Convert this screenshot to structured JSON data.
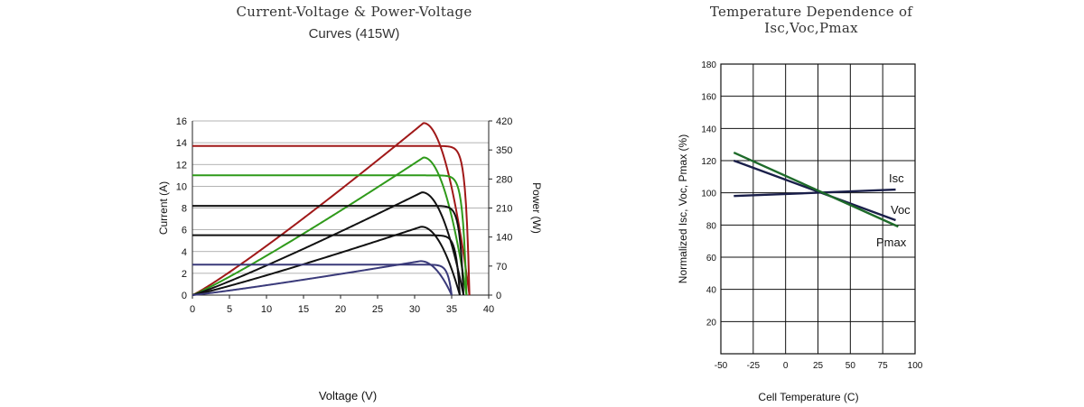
{
  "chart_data": [
    {
      "type": "line",
      "title": "Current-Voltage & Power-Voltage",
      "subtitle": "Curves (415W)",
      "xlabel": "Voltage (V)",
      "ylabel": "Current (A)",
      "y2label": "Power (W)",
      "xlim": [
        0,
        40
      ],
      "ylim": [
        0,
        16
      ],
      "y2lim": [
        0,
        420
      ],
      "x_ticks": [
        "0",
        "5",
        "10",
        "15",
        "20",
        "25",
        "30",
        "35",
        "40"
      ],
      "y_ticks": [
        "0",
        "2",
        "4",
        "6",
        "8",
        "10",
        "12",
        "14",
        "16"
      ],
      "y2_ticks": [
        "0",
        "70",
        "140",
        "210",
        "280",
        "350",
        "420"
      ],
      "grid": "horizontal",
      "series": [
        {
          "color": "#a01818",
          "isc": 13.7,
          "voc": 37.4,
          "vmp": 31.2,
          "pmax": 415
        },
        {
          "color": "#2f9a1a",
          "isc": 11.0,
          "voc": 37.0,
          "vmp": 31.2,
          "pmax": 332
        },
        {
          "color": "#111111",
          "isc": 8.2,
          "voc": 36.6,
          "vmp": 31.0,
          "pmax": 248
        },
        {
          "color": "#111111",
          "isc": 5.5,
          "voc": 36.1,
          "vmp": 30.9,
          "pmax": 165
        },
        {
          "color": "#3a3a7a",
          "isc": 2.8,
          "voc": 35.0,
          "vmp": 30.8,
          "pmax": 82
        }
      ]
    },
    {
      "type": "line",
      "title": "Temperature Dependence of",
      "title2": "Isc,Voc,Pmax",
      "xlabel": "Cell Temperature (C)",
      "ylabel": "Normalized Isc, Voc, Pmax (%)",
      "xlim": [
        -50,
        100
      ],
      "ylim": [
        0,
        180
      ],
      "x_ticks": [
        "-50",
        "-25",
        "0",
        "25",
        "50",
        "75",
        "100"
      ],
      "y_ticks": [
        "20",
        "40",
        "60",
        "80",
        "100",
        "120",
        "140",
        "160",
        "180"
      ],
      "grid": "both",
      "series": [
        {
          "name": "Isc",
          "color": "#1a1f4a",
          "x": [
            -40,
            85
          ],
          "y": [
            98,
            102
          ]
        },
        {
          "name": "Voc",
          "color": "#1a1f4a",
          "x": [
            -40,
            85
          ],
          "y": [
            120,
            83
          ]
        },
        {
          "name": "Pmax",
          "color": "#1e6b2a",
          "x": [
            -40,
            87
          ],
          "y": [
            125,
            79
          ]
        }
      ]
    }
  ]
}
